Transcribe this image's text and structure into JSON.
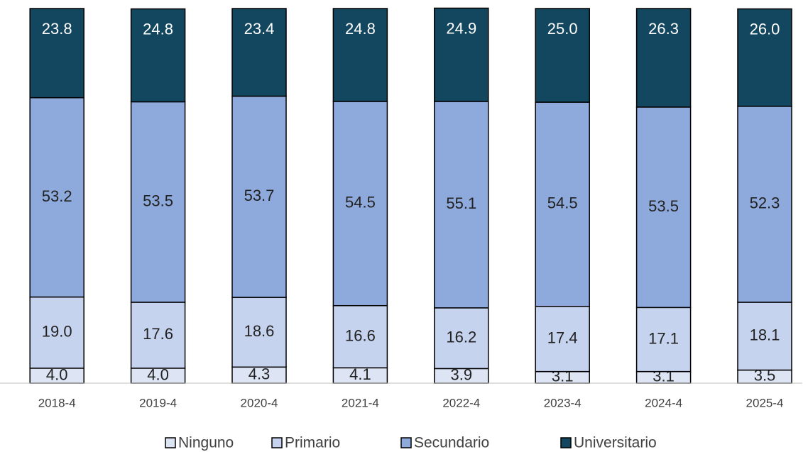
{
  "chart_data": {
    "type": "stacked_bar",
    "categories": [
      "2018-4",
      "2019-4",
      "2020-4",
      "2021-4",
      "2022-4",
      "2023-4",
      "2024-4",
      "2025-4"
    ],
    "series": [
      {
        "name": "Ninguno",
        "color": "#dde5f5",
        "values": [
          4.0,
          4.0,
          4.3,
          4.1,
          3.9,
          3.1,
          3.1,
          3.5
        ],
        "value_labels": [
          "4.0",
          "4.0",
          "4.3",
          "4.1",
          "3.9",
          "3.1",
          "3.1",
          "3.5"
        ]
      },
      {
        "name": "Primario",
        "color": "#c5d3ee",
        "values": [
          19.0,
          17.6,
          18.6,
          16.6,
          16.2,
          17.4,
          17.1,
          18.1
        ],
        "value_labels": [
          "19.0",
          "17.6",
          "18.6",
          "16.6",
          "16.2",
          "17.4",
          "17.1",
          "18.1"
        ]
      },
      {
        "name": "Secundario",
        "color": "#8eaadc",
        "values": [
          53.2,
          53.5,
          53.7,
          54.5,
          55.1,
          54.5,
          53.5,
          52.3
        ]
      },
      {
        "name": "Universitario",
        "color": "#134760",
        "values": [
          23.8,
          24.8,
          23.4,
          24.8,
          24.9,
          25.0,
          26.3,
          26.0
        ],
        "value_labels": [
          "23.8",
          "24.8",
          "23.4",
          "24.8",
          "24.9",
          "25.0",
          "26.3",
          "26.0"
        ]
      }
    ],
    "ylim": [
      0,
      100
    ]
  }
}
